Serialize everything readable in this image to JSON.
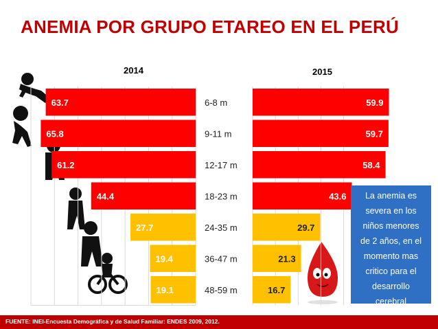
{
  "title": "ANEMIA POR GRUPO ETAREO EN EL PERÚ",
  "footer": "FUENTE: INEI-Encuesta Demográfica y de Salud Familiar: ENDES  2009, 2012.",
  "note": [
    "La anemia es",
    "severa  en los",
    "niños menores",
    "de 2 años, en el",
    "momento mas",
    "critico para el",
    "desarrollo",
    "cerebral"
  ],
  "colors": {
    "title": "#c00000",
    "high": "#ff0000",
    "low": "#ffc000",
    "note_bg": "#2f70c4",
    "footer_bg": "#c00000"
  },
  "icons": [
    "baby-silhouette-icon",
    "crawling-baby-silhouette-icon",
    "toddler-silhouette-icon",
    "child-silhouette-icon",
    "blood-drop-mascot-icon"
  ],
  "chart_data": [
    {
      "type": "bar",
      "title": "2014",
      "orientation": "horizontal",
      "direction": "right-to-left",
      "categories": [
        "6-8 m",
        "9-11  m",
        "12-17 m",
        "18-23 m",
        "24-35 m",
        "36-47 m",
        "48-59 m"
      ],
      "values": [
        63.7,
        65.8,
        61.2,
        44.4,
        27.7,
        19.4,
        19.1
      ],
      "bar_colors": [
        "#ff0000",
        "#ff0000",
        "#ff0000",
        "#ff0000",
        "#ffc000",
        "#ffc000",
        "#ffc000"
      ],
      "xlim": [
        0,
        70
      ],
      "grid": true
    },
    {
      "type": "bar",
      "title": "2015",
      "orientation": "horizontal",
      "direction": "left-to-right",
      "categories": [
        "6-8 m",
        "9-11  m",
        "12-17 m",
        "18-23 m",
        "24-35 m",
        "36-47 m",
        "48-59 m"
      ],
      "values": [
        59.9,
        59.7,
        58.4,
        43.6,
        29.7,
        21.3,
        16.7
      ],
      "bar_colors": [
        "#ff0000",
        "#ff0000",
        "#ff0000",
        "#ff0000",
        "#ffc000",
        "#ffc000",
        "#ffc000"
      ],
      "xlim": [
        0,
        70
      ],
      "grid": true
    }
  ]
}
